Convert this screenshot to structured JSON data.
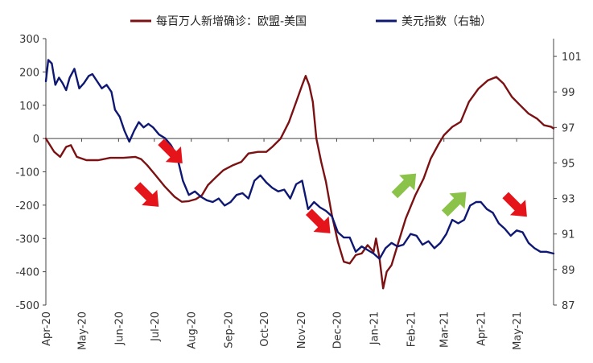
{
  "chart_data": {
    "type": "line",
    "legend": {
      "placement": "top-center"
    },
    "grid": false,
    "x_range": [
      "2020-04-01",
      "2021-06-01"
    ],
    "x_tick_labels": [
      "Apr-20",
      "May-20",
      "Jun-20",
      "Jul-20",
      "Aug-20",
      "Sep-20",
      "Oct-20",
      "Nov-20",
      "Dec-20",
      "Jan-21",
      "Feb-21",
      "Mar-21",
      "Apr-21",
      "May-21"
    ],
    "x_tick_dates": [
      "2020-04-01",
      "2020-05-01",
      "2020-06-01",
      "2020-07-01",
      "2020-08-01",
      "2020-09-01",
      "2020-10-01",
      "2020-11-01",
      "2020-12-01",
      "2021-01-01",
      "2021-02-01",
      "2021-03-01",
      "2021-04-01",
      "2021-05-01"
    ],
    "y_left": {
      "range": [
        -500,
        300
      ],
      "ticks": [
        "300",
        "200",
        "100",
        "0",
        "-100",
        "-200",
        "-300",
        "-400",
        "-500"
      ]
    },
    "y_right": {
      "range": [
        87,
        102
      ],
      "ticks": [
        "101",
        "99",
        "97",
        "95",
        "93",
        "91",
        "89",
        "87"
      ]
    },
    "series": [
      {
        "name": "每百万人新增确诊：欧盟-美国",
        "axis": "left",
        "color": "#7b1113",
        "points": [
          [
            "2020-04-01",
            0
          ],
          [
            "2020-04-08",
            -40
          ],
          [
            "2020-04-13",
            -55
          ],
          [
            "2020-04-18",
            -25
          ],
          [
            "2020-04-22",
            -20
          ],
          [
            "2020-04-27",
            -55
          ],
          [
            "2020-05-05",
            -65
          ],
          [
            "2020-05-15",
            -65
          ],
          [
            "2020-05-25",
            -58
          ],
          [
            "2020-06-05",
            -58
          ],
          [
            "2020-06-15",
            -55
          ],
          [
            "2020-06-20",
            -62
          ],
          [
            "2020-06-25",
            -80
          ],
          [
            "2020-07-02",
            -110
          ],
          [
            "2020-07-10",
            -145
          ],
          [
            "2020-07-18",
            -175
          ],
          [
            "2020-07-24",
            -190
          ],
          [
            "2020-07-30",
            -188
          ],
          [
            "2020-08-05",
            -182
          ],
          [
            "2020-08-10",
            -170
          ],
          [
            "2020-08-15",
            -140
          ],
          [
            "2020-08-22",
            -115
          ],
          [
            "2020-08-28",
            -95
          ],
          [
            "2020-09-05",
            -80
          ],
          [
            "2020-09-12",
            -70
          ],
          [
            "2020-09-18",
            -45
          ],
          [
            "2020-09-26",
            -40
          ],
          [
            "2020-10-03",
            -40
          ],
          [
            "2020-10-08",
            -25
          ],
          [
            "2020-10-15",
            0
          ],
          [
            "2020-10-22",
            50
          ],
          [
            "2020-10-28",
            110
          ],
          [
            "2020-11-02",
            160
          ],
          [
            "2020-11-05",
            188
          ],
          [
            "2020-11-08",
            160
          ],
          [
            "2020-11-11",
            110
          ],
          [
            "2020-11-14",
            0
          ],
          [
            "2020-11-18",
            -70
          ],
          [
            "2020-11-22",
            -130
          ],
          [
            "2020-11-27",
            -230
          ],
          [
            "2020-12-02",
            -310
          ],
          [
            "2020-12-07",
            -370
          ],
          [
            "2020-12-12",
            -375
          ],
          [
            "2020-12-17",
            -350
          ],
          [
            "2020-12-22",
            -345
          ],
          [
            "2020-12-27",
            -320
          ],
          [
            "2021-01-01",
            -340
          ],
          [
            "2021-01-03",
            -300
          ],
          [
            "2021-01-06",
            -360
          ],
          [
            "2021-01-09",
            -450
          ],
          [
            "2021-01-12",
            -400
          ],
          [
            "2021-01-16",
            -380
          ],
          [
            "2021-01-22",
            -310
          ],
          [
            "2021-01-28",
            -240
          ],
          [
            "2021-02-05",
            -170
          ],
          [
            "2021-02-12",
            -120
          ],
          [
            "2021-02-18",
            -60
          ],
          [
            "2021-02-24",
            -20
          ],
          [
            "2021-03-01",
            10
          ],
          [
            "2021-03-08",
            35
          ],
          [
            "2021-03-15",
            50
          ],
          [
            "2021-03-22",
            110
          ],
          [
            "2021-03-30",
            150
          ],
          [
            "2021-04-07",
            175
          ],
          [
            "2021-04-14",
            185
          ],
          [
            "2021-04-20",
            165
          ],
          [
            "2021-04-27",
            125
          ],
          [
            "2021-05-04",
            100
          ],
          [
            "2021-05-11",
            75
          ],
          [
            "2021-05-18",
            60
          ],
          [
            "2021-05-24",
            40
          ],
          [
            "2021-05-30",
            35
          ],
          [
            "2021-06-01",
            30
          ]
        ]
      },
      {
        "name": "美元指数（右轴）",
        "axis": "right",
        "color": "#0e1872",
        "points": [
          [
            "2020-04-01",
            99.6
          ],
          [
            "2020-04-03",
            100.8
          ],
          [
            "2020-04-06",
            100.6
          ],
          [
            "2020-04-09",
            99.4
          ],
          [
            "2020-04-12",
            99.8
          ],
          [
            "2020-04-15",
            99.5
          ],
          [
            "2020-04-18",
            99.1
          ],
          [
            "2020-04-21",
            99.8
          ],
          [
            "2020-04-25",
            100.3
          ],
          [
            "2020-04-29",
            99.2
          ],
          [
            "2020-05-03",
            99.5
          ],
          [
            "2020-05-07",
            99.9
          ],
          [
            "2020-05-10",
            100.0
          ],
          [
            "2020-05-14",
            99.6
          ],
          [
            "2020-05-18",
            99.2
          ],
          [
            "2020-05-22",
            99.4
          ],
          [
            "2020-05-26",
            99.0
          ],
          [
            "2020-05-29",
            98.0
          ],
          [
            "2020-06-02",
            97.6
          ],
          [
            "2020-06-06",
            96.8
          ],
          [
            "2020-06-10",
            96.2
          ],
          [
            "2020-06-14",
            96.8
          ],
          [
            "2020-06-18",
            97.3
          ],
          [
            "2020-06-22",
            97.0
          ],
          [
            "2020-06-26",
            97.2
          ],
          [
            "2020-06-30",
            97.0
          ],
          [
            "2020-07-05",
            96.6
          ],
          [
            "2020-07-10",
            96.4
          ],
          [
            "2020-07-15",
            96.0
          ],
          [
            "2020-07-20",
            95.4
          ],
          [
            "2020-07-25",
            94.0
          ],
          [
            "2020-07-30",
            93.2
          ],
          [
            "2020-08-04",
            93.4
          ],
          [
            "2020-08-09",
            93.1
          ],
          [
            "2020-08-14",
            92.9
          ],
          [
            "2020-08-19",
            92.8
          ],
          [
            "2020-08-24",
            93.0
          ],
          [
            "2020-08-29",
            92.6
          ],
          [
            "2020-09-03",
            92.8
          ],
          [
            "2020-09-08",
            93.2
          ],
          [
            "2020-09-13",
            93.3
          ],
          [
            "2020-09-18",
            93.0
          ],
          [
            "2020-09-23",
            94.0
          ],
          [
            "2020-09-28",
            94.3
          ],
          [
            "2020-10-03",
            93.9
          ],
          [
            "2020-10-08",
            93.6
          ],
          [
            "2020-10-13",
            93.4
          ],
          [
            "2020-10-18",
            93.5
          ],
          [
            "2020-10-23",
            93.0
          ],
          [
            "2020-10-28",
            93.8
          ],
          [
            "2020-11-02",
            94.0
          ],
          [
            "2020-11-07",
            92.4
          ],
          [
            "2020-11-12",
            92.8
          ],
          [
            "2020-11-17",
            92.5
          ],
          [
            "2020-11-22",
            92.3
          ],
          [
            "2020-11-27",
            92.0
          ],
          [
            "2020-12-02",
            91.1
          ],
          [
            "2020-12-07",
            90.8
          ],
          [
            "2020-12-12",
            90.8
          ],
          [
            "2020-12-17",
            90.0
          ],
          [
            "2020-12-22",
            90.3
          ],
          [
            "2020-12-27",
            90.1
          ],
          [
            "2021-01-01",
            89.9
          ],
          [
            "2021-01-06",
            89.6
          ],
          [
            "2021-01-11",
            90.2
          ],
          [
            "2021-01-16",
            90.5
          ],
          [
            "2021-01-21",
            90.3
          ],
          [
            "2021-01-26",
            90.4
          ],
          [
            "2021-02-01",
            91.0
          ],
          [
            "2021-02-06",
            90.9
          ],
          [
            "2021-02-11",
            90.4
          ],
          [
            "2021-02-16",
            90.6
          ],
          [
            "2021-02-21",
            90.2
          ],
          [
            "2021-02-26",
            90.5
          ],
          [
            "2021-03-03",
            91.0
          ],
          [
            "2021-03-08",
            91.8
          ],
          [
            "2021-03-13",
            91.6
          ],
          [
            "2021-03-18",
            91.8
          ],
          [
            "2021-03-23",
            92.6
          ],
          [
            "2021-03-28",
            92.8
          ],
          [
            "2021-04-01",
            92.8
          ],
          [
            "2021-04-06",
            92.4
          ],
          [
            "2021-04-11",
            92.2
          ],
          [
            "2021-04-16",
            91.6
          ],
          [
            "2021-04-21",
            91.3
          ],
          [
            "2021-04-26",
            90.9
          ],
          [
            "2021-05-01",
            91.2
          ],
          [
            "2021-05-06",
            91.1
          ],
          [
            "2021-05-11",
            90.5
          ],
          [
            "2021-05-16",
            90.2
          ],
          [
            "2021-05-21",
            90.0
          ],
          [
            "2021-05-26",
            90.0
          ],
          [
            "2021-06-01",
            89.9
          ]
        ]
      }
    ],
    "annotations": [
      {
        "type": "arrow",
        "direction": "down-right",
        "color": "#e5141a",
        "date": "2020-06-25",
        "left_value": -170
      },
      {
        "type": "arrow",
        "direction": "down-right",
        "color": "#e5141a",
        "date": "2020-07-15",
        "left_value": -40
      },
      {
        "type": "arrow",
        "direction": "down-right",
        "color": "#e5141a",
        "date": "2020-11-16",
        "left_value": -250
      },
      {
        "type": "arrow",
        "direction": "up-right",
        "color": "#8bc34a",
        "date": "2021-01-27",
        "left_value": -140
      },
      {
        "type": "arrow",
        "direction": "up-right",
        "color": "#8bc34a",
        "date": "2021-03-10",
        "left_value": -195
      },
      {
        "type": "arrow",
        "direction": "down-right",
        "color": "#e5141a",
        "date": "2021-04-30",
        "left_value": -200
      }
    ]
  }
}
